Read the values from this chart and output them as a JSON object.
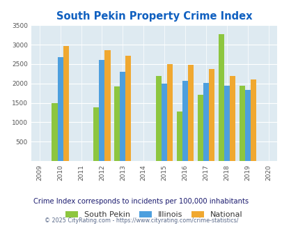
{
  "title": "South Pekin Property Crime Index",
  "all_years": [
    2009,
    2010,
    2011,
    2012,
    2013,
    2014,
    2015,
    2016,
    2017,
    2018,
    2019,
    2020
  ],
  "data_years": [
    2010,
    2012,
    2013,
    2015,
    2016,
    2017,
    2018,
    2019
  ],
  "south_pekin": [
    1500,
    1380,
    1920,
    2200,
    1270,
    1700,
    3270,
    1950
  ],
  "illinois": [
    2680,
    2600,
    2300,
    2000,
    2060,
    2010,
    1940,
    1840
  ],
  "national": [
    2960,
    2860,
    2720,
    2500,
    2480,
    2380,
    2200,
    2100
  ],
  "color_sp": "#8dc63f",
  "color_il": "#4d9fde",
  "color_na": "#f0a830",
  "bg_color": "#deeaf1",
  "ylim": [
    0,
    3500
  ],
  "yticks": [
    0,
    500,
    1000,
    1500,
    2000,
    2500,
    3000,
    3500
  ],
  "title_color": "#1060c0",
  "subtitle": "Crime Index corresponds to incidents per 100,000 inhabitants",
  "footnote": "© 2025 CityRating.com - https://www.cityrating.com/crime-statistics/",
  "legend_labels": [
    "South Pekin",
    "Illinois",
    "National"
  ],
  "subtitle_color": "#1a1a6e",
  "footnote_color": "#5a6a8a"
}
